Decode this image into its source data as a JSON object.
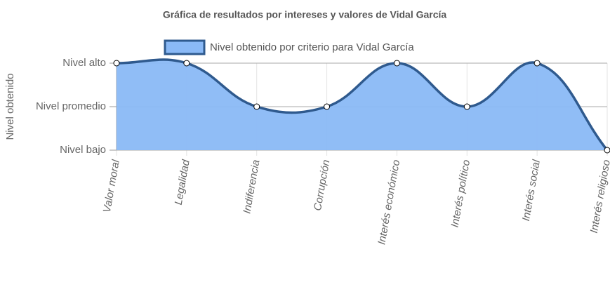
{
  "chart_data": {
    "type": "area",
    "title": "Gráfica de resultados por intereses y valores de Vidal García",
    "y_label": "Nivel obtenido",
    "categories": [
      "Valor moral",
      "Legalidad",
      "Indiferencia",
      "Corrupción",
      "Interés económico",
      "Interés político",
      "Interés social",
      "Interés religioso"
    ],
    "series": [
      {
        "name": "Nivel obtenido por criterio para Vidal García",
        "color": "#2f5a8e",
        "fill": "#8ab9f6",
        "values": [
          3,
          3,
          2,
          2,
          3,
          2,
          3,
          1
        ]
      }
    ],
    "ylim": [
      1,
      3
    ],
    "yticks": [
      {
        "value": 1,
        "label": "Nivel bajo"
      },
      {
        "value": 2,
        "label": "Nivel promedio"
      },
      {
        "value": 3,
        "label": "Nivel alto"
      }
    ],
    "grid": true
  }
}
